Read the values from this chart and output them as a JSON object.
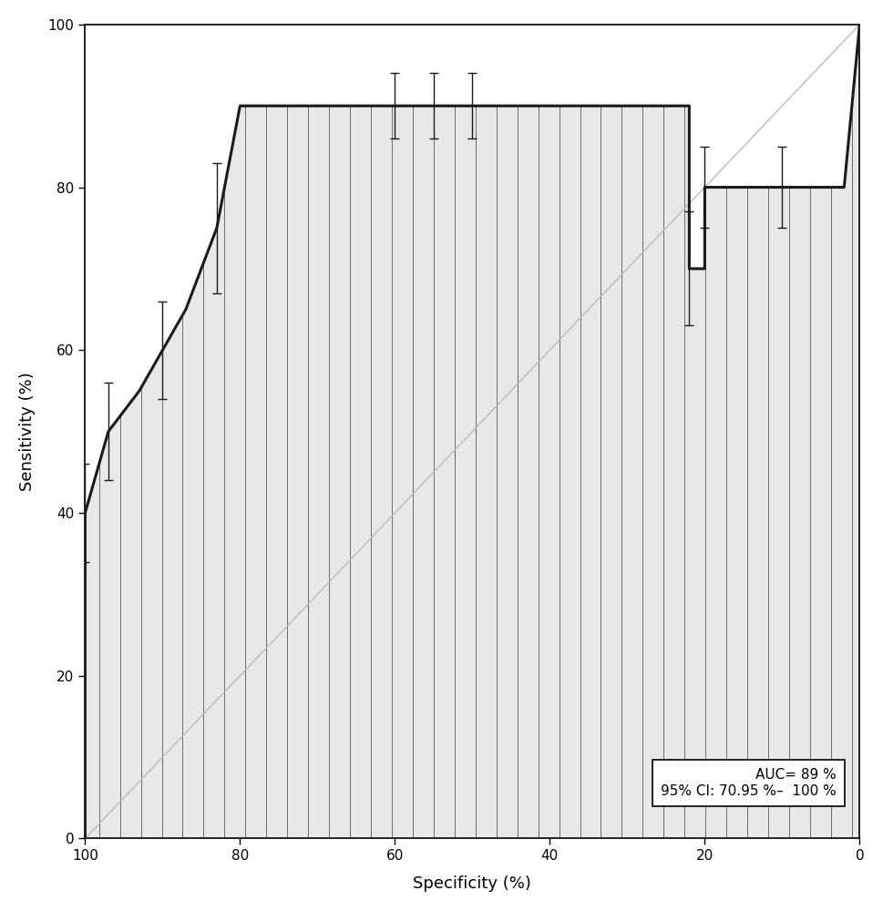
{
  "xlabel": "Specificity (%)",
  "ylabel": "Sensitivity (%)",
  "auc_line1": "AUC= 89 %",
  "auc_line2": "95% CI: 70.95 %–  100 %",
  "bg_color": "#ffffff",
  "plot_bg": "#ffffff",
  "roc_color": "#1a1a1a",
  "fill_color": "#e8e8e8",
  "diag_color": "#bbbbbb",
  "hatch_color": "#555555",
  "roc_lw": 2.2,
  "diag_lw": 1.0,
  "hatch_lw": 0.6,
  "xticks": [
    100,
    80,
    60,
    40,
    20,
    0
  ],
  "yticks": [
    0,
    20,
    40,
    60,
    80,
    100
  ],
  "roc_spec": [
    100,
    100,
    97,
    93,
    90,
    87,
    83,
    80,
    75,
    70,
    65,
    60,
    55,
    50,
    45,
    40,
    35,
    30,
    25,
    22,
    22,
    20,
    20,
    18,
    15,
    12,
    10,
    5,
    2,
    0,
    0
  ],
  "roc_sens": [
    0,
    40,
    50,
    55,
    60,
    65,
    75,
    90,
    90,
    90,
    90,
    90,
    90,
    90,
    90,
    90,
    90,
    90,
    90,
    90,
    70,
    70,
    80,
    80,
    80,
    80,
    80,
    80,
    80,
    100,
    100
  ],
  "eb_spec": [
    100,
    97,
    90,
    83,
    60,
    55,
    50,
    22,
    20,
    10,
    2
  ],
  "eb_sens": [
    40,
    50,
    60,
    75,
    90,
    90,
    90,
    70,
    80,
    80,
    100
  ],
  "eb_yerr_lo": [
    6,
    6,
    6,
    8,
    4,
    4,
    4,
    7,
    5,
    5,
    0
  ],
  "eb_yerr_hi": [
    6,
    6,
    6,
    8,
    4,
    4,
    4,
    7,
    5,
    5,
    0
  ]
}
